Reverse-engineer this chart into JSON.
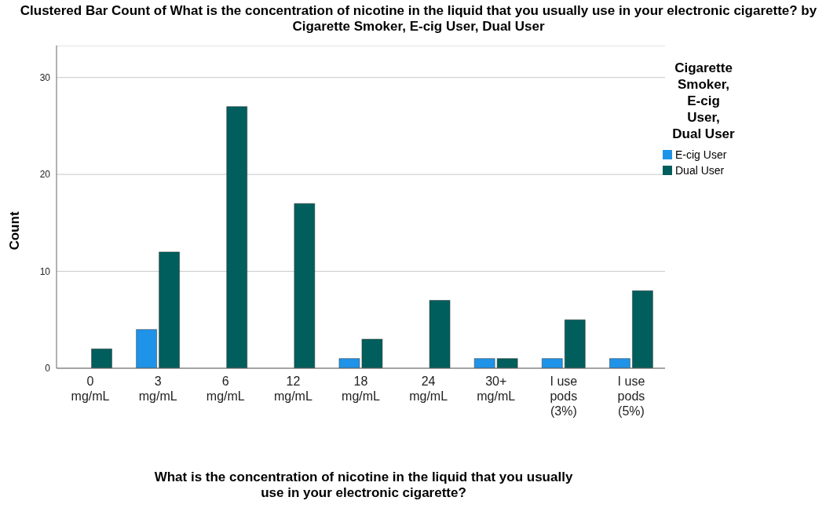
{
  "chart_data": {
    "type": "bar",
    "title": "Clustered Bar Count of What is the concentration of nicotine in the liquid that you usually use in your electronic cigarette? by Cigarette Smoker, E-cig User, Dual User",
    "xlabel": "What is the concentration of nicotine in the liquid that you usually use in your electronic cigarette?",
    "ylabel": "Count",
    "legend_title": "Cigarette Smoker, E-cig User, Dual User",
    "categories": [
      "0 mg/mL",
      "3 mg/mL",
      "6 mg/mL",
      "12 mg/mL",
      "18 mg/mL",
      "24 mg/mL",
      "30+ mg/mL",
      "I use pods (3%)",
      "I use pods (5%)"
    ],
    "series": [
      {
        "name": "E-cig User",
        "color": "#1f93e8",
        "values": [
          0,
          4,
          0,
          0,
          1,
          0,
          1,
          1,
          1
        ]
      },
      {
        "name": "Dual User",
        "color": "#005e5c",
        "values": [
          2,
          12,
          27,
          17,
          3,
          7,
          1,
          5,
          8
        ]
      }
    ],
    "ylim": [
      0,
      33.3
    ],
    "yticks": [
      0,
      10,
      20,
      30
    ],
    "grid": "y",
    "legend": "top right"
  }
}
